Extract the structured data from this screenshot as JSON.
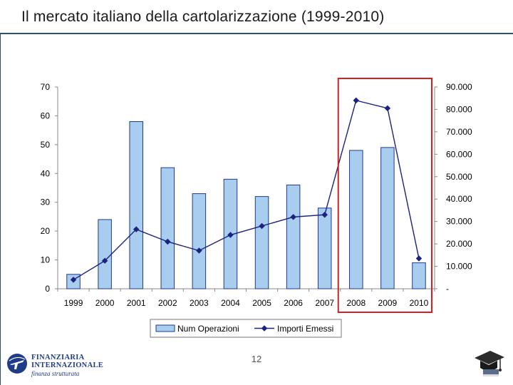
{
  "slide": {
    "title": "Il mercato italiano della cartolarizzazione (1999-2010)",
    "page_number": "12"
  },
  "logo": {
    "line1": "FINANZIARIA",
    "line2": "INTERNAZIONALE",
    "line3": "finanza strutturata",
    "icon": "airplane-globe-icon"
  },
  "footer_icon": "graduation-cap-icon",
  "colors": {
    "bar_fill": "#a9cdef",
    "bar_stroke": "#1f3a93",
    "line": "#1a237e",
    "highlight_box": "#d42020",
    "title_rule": "#2f4f6f"
  },
  "chart_data": {
    "type": "bar",
    "categories": [
      "1999",
      "2000",
      "2001",
      "2002",
      "2003",
      "2004",
      "2005",
      "2006",
      "2007",
      "2008",
      "2009",
      "2010"
    ],
    "series": [
      {
        "name": "Num Operazioni",
        "type": "bar",
        "axis": "left",
        "values": [
          5,
          24,
          58,
          42,
          33,
          38,
          32,
          36,
          28,
          48,
          49,
          9
        ]
      },
      {
        "name": "Importi Emessi",
        "type": "line",
        "axis": "right",
        "values": [
          4000,
          12500,
          26500,
          21000,
          17000,
          24000,
          28000,
          32000,
          33000,
          84000,
          80500,
          13500
        ]
      }
    ],
    "y_left": {
      "min": 0,
      "max": 70,
      "ticks": [
        "0",
        "10",
        "20",
        "30",
        "40",
        "50",
        "60",
        "70"
      ]
    },
    "y_right": {
      "min": 0,
      "max": 90000,
      "ticks": [
        "-",
        "10.000",
        "20.000",
        "30.000",
        "40.000",
        "50.000",
        "60.000",
        "70.000",
        "80.000",
        "90.000"
      ]
    },
    "legend": {
      "position": "bottom",
      "entries": [
        "Num Operazioni",
        "Importi Emessi"
      ]
    },
    "highlight": {
      "categories": [
        "2008",
        "2009",
        "2010"
      ]
    },
    "grid": false
  }
}
